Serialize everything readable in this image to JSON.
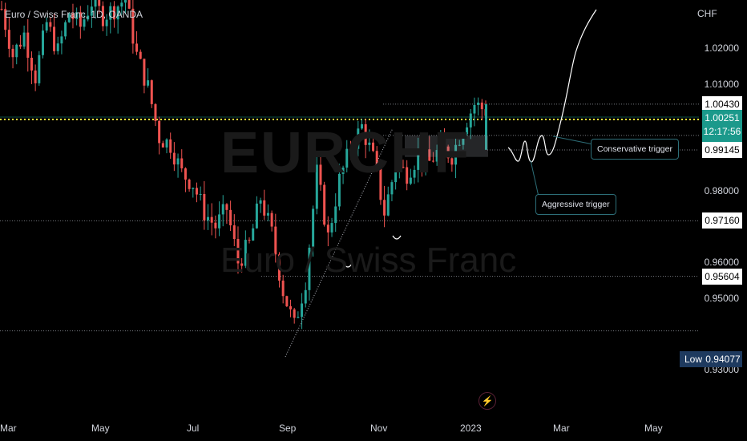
{
  "header": {
    "title": "Euro / Swiss Franc, 1D, OANDA"
  },
  "watermark": {
    "symbol": "EURCHF",
    "name": "Euro / Swiss Franc"
  },
  "price_axis": {
    "currency": "CHF",
    "ticks": [
      {
        "label": "1.02000",
        "value": 1.02
      },
      {
        "label": "1.01000",
        "value": 1.01
      },
      {
        "label": "0.98000",
        "value": 0.98
      },
      {
        "label": "0.96000",
        "value": 0.96
      },
      {
        "label": "0.95000",
        "value": 0.95
      },
      {
        "label": "0.93000",
        "value": 0.93
      }
    ],
    "levels": [
      {
        "label": "1.00430",
        "value": 1.0043,
        "style": "white"
      },
      {
        "label": "1.00000",
        "value": 1.0,
        "style": "yellow"
      },
      {
        "label": "0.99552",
        "value": 0.99552,
        "style": "white"
      },
      {
        "label": "0.99145",
        "value": 0.99145,
        "style": "white"
      },
      {
        "label": "0.97160",
        "value": 0.9716,
        "style": "white"
      },
      {
        "label": "0.95604",
        "value": 0.95604,
        "style": "white"
      }
    ],
    "current_price": {
      "label": "1.00251",
      "countdown": "12:17:56",
      "color": "#1b998b"
    },
    "low": {
      "tag": "Low",
      "label": "0.94077"
    }
  },
  "time_axis": {
    "labels": [
      "Mar",
      "May",
      "Jul",
      "Sep",
      "Nov",
      "2023",
      "Mar",
      "May"
    ]
  },
  "annotations": {
    "conservative": "Conservative trigger",
    "aggressive": "Aggressive trigger"
  },
  "colors": {
    "up": "#26a69a",
    "down": "#ef5350",
    "level_line": "#9598a1",
    "yellow_line": "#ffeb3b"
  },
  "icons": {
    "alert": "flash-icon"
  },
  "chart_data": {
    "type": "candlestick",
    "title": "Euro / Swiss Franc, 1D, OANDA",
    "ylabel": "CHF",
    "ylim": [
      0.926,
      1.033
    ],
    "x_months": [
      "Mar",
      "May",
      "Jul",
      "Sep",
      "Nov",
      "2023",
      "Mar",
      "May"
    ],
    "price_path": [
      1.031,
      1.018,
      1.024,
      1.012,
      1.027,
      1.019,
      1.03,
      1.026,
      1.033,
      1.029,
      1.031,
      1.034,
      1.018,
      1.009,
      0.995,
      0.993,
      0.985,
      0.982,
      0.974,
      0.97,
      0.975,
      0.96,
      0.965,
      0.978,
      0.968,
      0.952,
      0.942,
      0.955,
      0.985,
      0.967,
      0.983,
      0.992,
      0.998,
      0.989,
      0.974,
      0.987,
      0.985,
      0.99,
      0.988,
      0.992,
      0.99,
      0.998,
      1.0043,
      1.0025
    ],
    "current_price": 1.00251,
    "low": 0.94077,
    "horizontal_levels": [
      1.0043,
      1.0,
      0.99552,
      0.99145,
      0.9716,
      0.95604,
      0.94077
    ],
    "annotations": [
      "Conservative trigger",
      "Aggressive trigger"
    ]
  }
}
